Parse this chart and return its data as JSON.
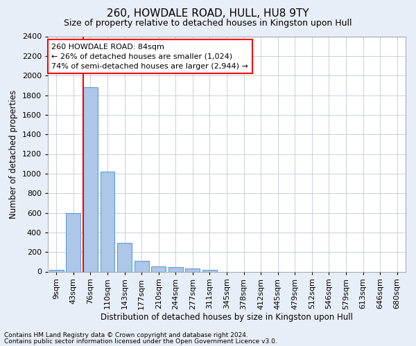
{
  "title": "260, HOWDALE ROAD, HULL, HU8 9TY",
  "subtitle": "Size of property relative to detached houses in Kingston upon Hull",
  "xlabel": "Distribution of detached houses by size in Kingston upon Hull",
  "ylabel": "Number of detached properties",
  "footnote1": "Contains HM Land Registry data © Crown copyright and database right 2024.",
  "footnote2": "Contains public sector information licensed under the Open Government Licence v3.0.",
  "categories": [
    "9sqm",
    "43sqm",
    "76sqm",
    "110sqm",
    "143sqm",
    "177sqm",
    "210sqm",
    "244sqm",
    "277sqm",
    "311sqm",
    "345sqm",
    "378sqm",
    "412sqm",
    "445sqm",
    "479sqm",
    "512sqm",
    "546sqm",
    "579sqm",
    "613sqm",
    "646sqm",
    "680sqm"
  ],
  "values": [
    20,
    600,
    1880,
    1020,
    295,
    110,
    50,
    45,
    30,
    20,
    0,
    0,
    0,
    0,
    0,
    0,
    0,
    0,
    0,
    0,
    0
  ],
  "bar_color": "#aec6e8",
  "bar_edge_color": "#5a9fd4",
  "vline_x_index": 2,
  "vline_color": "red",
  "ylim": [
    0,
    2400
  ],
  "yticks": [
    0,
    200,
    400,
    600,
    800,
    1000,
    1200,
    1400,
    1600,
    1800,
    2000,
    2200,
    2400
  ],
  "annotation_text": "260 HOWDALE ROAD: 84sqm\n← 26% of detached houses are smaller (1,024)\n74% of semi-detached houses are larger (2,944) →",
  "annotation_box_color": "white",
  "annotation_box_edge": "red",
  "bg_color": "#e8eef7",
  "plot_bg_color": "white",
  "grid_color": "#c8d0dc",
  "title_fontsize": 11,
  "subtitle_fontsize": 9,
  "ylabel_fontsize": 8.5,
  "xlabel_fontsize": 8.5,
  "tick_fontsize": 8,
  "annot_fontsize": 8,
  "footnote_fontsize": 6.5
}
